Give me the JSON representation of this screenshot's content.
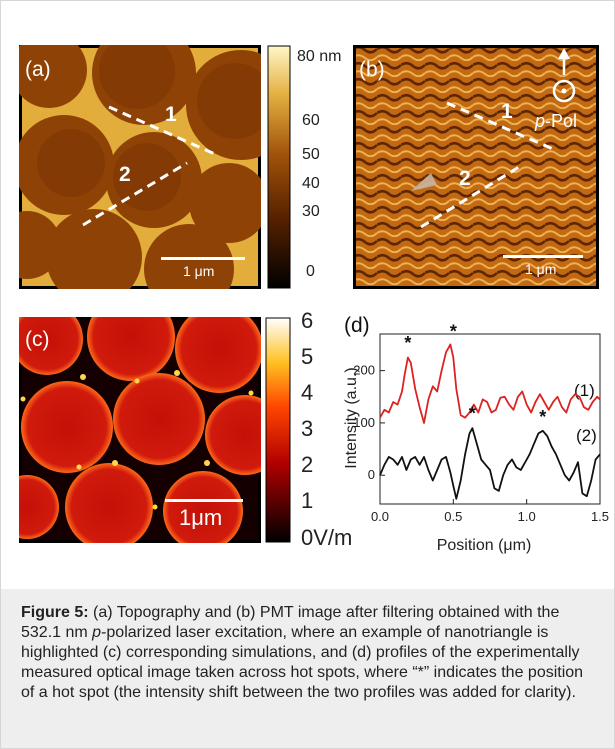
{
  "figure": {
    "panel_a": {
      "label": "(a)",
      "profile_labels": [
        "1",
        "2"
      ],
      "scalebar": "1 μm",
      "colorbar": {
        "ticks": [
          "80 nm",
          "60",
          "50",
          "40",
          "30",
          "0"
        ]
      }
    },
    "panel_b": {
      "label": "(b)",
      "profile_labels": [
        "1",
        "2"
      ],
      "scalebar": "1 μm",
      "polarization_italic": "p",
      "polarization_rest": "-Pol"
    },
    "panel_c": {
      "label": "(c)",
      "scalebar": "1μm",
      "colorbar": {
        "ticks": [
          "6",
          "5",
          "4",
          "3",
          "2",
          "1",
          "0V/m"
        ]
      }
    },
    "panel_d": {
      "label": "(d)",
      "chart_data": {
        "type": "line",
        "xlabel": "Position (μm)",
        "ylabel": "Intensity (a.u.)",
        "xlim": [
          0.0,
          1.5
        ],
        "ylim": [
          -55,
          270
        ],
        "xticks": [
          "0.0",
          "0.5",
          "1.0",
          "1.5"
        ],
        "yticks": [
          "0",
          "100",
          "200"
        ],
        "series": [
          {
            "name": "(1)",
            "color": "#dd2222",
            "x": [
              0.0,
              0.03,
              0.06,
              0.09,
              0.12,
              0.15,
              0.17,
              0.19,
              0.21,
              0.24,
              0.27,
              0.3,
              0.33,
              0.36,
              0.39,
              0.42,
              0.45,
              0.48,
              0.5,
              0.52,
              0.55,
              0.58,
              0.61,
              0.64,
              0.67,
              0.7,
              0.73,
              0.76,
              0.79,
              0.82,
              0.85,
              0.88,
              0.91,
              0.94,
              0.97,
              1.0,
              1.03,
              1.06,
              1.09,
              1.12,
              1.15,
              1.18,
              1.21,
              1.24,
              1.27,
              1.3,
              1.33,
              1.36,
              1.39,
              1.42,
              1.45,
              1.48,
              1.5
            ],
            "y": [
              110,
              125,
              120,
              140,
              135,
              160,
              195,
              225,
              215,
              165,
              130,
              100,
              145,
              170,
              160,
              200,
              235,
              250,
              225,
              165,
              115,
              110,
              120,
              135,
              120,
              145,
              140,
              120,
              125,
              148,
              150,
              135,
              125,
              150,
              160,
              135,
              120,
              140,
              155,
              140,
              125,
              140,
              150,
              130,
              120,
              145,
              155,
              150,
              130,
              125,
              140,
              150,
              145
            ]
          },
          {
            "name": "(2)",
            "color": "#111111",
            "x": [
              0.0,
              0.03,
              0.06,
              0.09,
              0.12,
              0.15,
              0.18,
              0.21,
              0.24,
              0.27,
              0.3,
              0.33,
              0.36,
              0.39,
              0.42,
              0.45,
              0.48,
              0.5,
              0.52,
              0.55,
              0.58,
              0.61,
              0.63,
              0.66,
              0.69,
              0.72,
              0.75,
              0.78,
              0.81,
              0.84,
              0.87,
              0.9,
              0.93,
              0.96,
              0.99,
              1.02,
              1.05,
              1.08,
              1.11,
              1.14,
              1.17,
              1.2,
              1.23,
              1.26,
              1.29,
              1.32,
              1.35,
              1.38,
              1.41,
              1.44,
              1.47,
              1.5
            ],
            "y": [
              0,
              20,
              35,
              30,
              20,
              35,
              10,
              30,
              35,
              20,
              35,
              10,
              -10,
              10,
              30,
              35,
              5,
              -20,
              -45,
              -10,
              40,
              80,
              90,
              60,
              30,
              20,
              10,
              -25,
              -30,
              0,
              20,
              30,
              15,
              10,
              25,
              40,
              60,
              80,
              85,
              75,
              55,
              40,
              20,
              0,
              -10,
              5,
              25,
              -35,
              -40,
              -10,
              30,
              40
            ]
          }
        ],
        "peak_marker": "*",
        "peaks": [
          {
            "x": 0.19,
            "y": 230
          },
          {
            "x": 0.5,
            "y": 252
          },
          {
            "x": 0.63,
            "y": 95
          },
          {
            "x": 1.11,
            "y": 88
          }
        ]
      }
    }
  },
  "caption": {
    "lead": "Figure 5:",
    "text_1": " (a) Topography and (b) PMT image after filtering obtained with the 532.1 nm ",
    "italic_p": "p",
    "text_2": "-polarized laser excitation, where an example of nanotriangle is highlighted (c) corresponding simulations, and (d) profiles of the experimentally measured optical image taken across hot spots, where “*” indicates the position of a hot spot (the intensity shift between the two profiles was added for clarity)."
  },
  "colors": {
    "caption_bg": "#eeeeee",
    "topo_dark": "#4a1a00",
    "topo_mid": "#9c4a06",
    "topo_light": "#f2cc55",
    "field_red": "#cc0d08"
  }
}
